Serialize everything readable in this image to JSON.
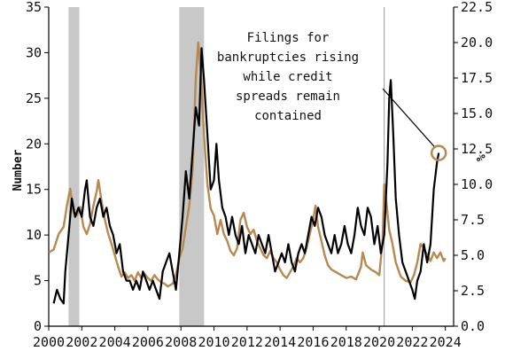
{
  "chart_data": {
    "type": "line",
    "title": "",
    "xlabel": "",
    "ylabel_left": "Number",
    "ylabel_right": "%",
    "x_ticks": [
      "2000",
      "2002",
      "2004",
      "2006",
      "2008",
      "2010",
      "2012",
      "2014",
      "2016",
      "2018",
      "2020",
      "2022",
      "2024"
    ],
    "xlim": [
      2000,
      2024.5
    ],
    "y_left": {
      "lim": [
        0,
        35
      ],
      "ticks": [
        "0",
        "5",
        "10",
        "15",
        "20",
        "25",
        "30",
        "35"
      ]
    },
    "y_right": {
      "lim": [
        0,
        22.5
      ],
      "ticks": [
        "0.0",
        "2.5",
        "5.0",
        "7.5",
        "10.0",
        "12.5",
        "15.0",
        "17.5",
        "20.0",
        "22.5"
      ]
    },
    "grid": false,
    "recession_shading": [
      [
        2001.2,
        2001.85
      ],
      [
        2007.9,
        2009.4
      ]
    ],
    "vertical_marker_x": 2020.3,
    "colors": {
      "bankruptcies": "#000000",
      "credit_spreads": "#b5894f",
      "recession": "#c8c8c8",
      "highlight": "#b5894f"
    },
    "annotation": {
      "lines": [
        "Filings for",
        "bankruptcies rising",
        "while credit",
        "spreads remain",
        "contained"
      ],
      "target": {
        "x": 2023.6,
        "y_left": 19
      }
    },
    "series": [
      {
        "axis": "left",
        "color_key": "bankruptcies",
        "points": [
          [
            2000.3,
            2.5
          ],
          [
            2000.5,
            4
          ],
          [
            2000.7,
            3
          ],
          [
            2000.9,
            2.5
          ],
          [
            2001.0,
            6
          ],
          [
            2001.2,
            10
          ],
          [
            2001.4,
            14
          ],
          [
            2001.6,
            12
          ],
          [
            2001.8,
            13
          ],
          [
            2002.0,
            12
          ],
          [
            2002.2,
            15
          ],
          [
            2002.3,
            16
          ],
          [
            2002.5,
            12
          ],
          [
            2002.7,
            11
          ],
          [
            2002.9,
            13
          ],
          [
            2003.1,
            14
          ],
          [
            2003.3,
            12
          ],
          [
            2003.5,
            13
          ],
          [
            2003.7,
            11
          ],
          [
            2003.9,
            10
          ],
          [
            2004.1,
            8
          ],
          [
            2004.3,
            9
          ],
          [
            2004.5,
            6
          ],
          [
            2004.7,
            5
          ],
          [
            2004.9,
            5
          ],
          [
            2005.1,
            4
          ],
          [
            2005.3,
            5
          ],
          [
            2005.5,
            4
          ],
          [
            2005.7,
            6
          ],
          [
            2005.9,
            5
          ],
          [
            2006.1,
            4
          ],
          [
            2006.3,
            5
          ],
          [
            2006.5,
            4
          ],
          [
            2006.7,
            3
          ],
          [
            2006.9,
            6
          ],
          [
            2007.1,
            7
          ],
          [
            2007.3,
            8
          ],
          [
            2007.5,
            6
          ],
          [
            2007.7,
            4
          ],
          [
            2007.9,
            8
          ],
          [
            2008.1,
            12
          ],
          [
            2008.3,
            17
          ],
          [
            2008.5,
            14
          ],
          [
            2008.7,
            19
          ],
          [
            2008.9,
            24
          ],
          [
            2009.1,
            22
          ],
          [
            2009.25,
            30.5
          ],
          [
            2009.4,
            27
          ],
          [
            2009.6,
            21
          ],
          [
            2009.8,
            15
          ],
          [
            2010.0,
            16
          ],
          [
            2010.15,
            20
          ],
          [
            2010.3,
            16
          ],
          [
            2010.5,
            13
          ],
          [
            2010.7,
            12
          ],
          [
            2010.9,
            10
          ],
          [
            2011.1,
            12
          ],
          [
            2011.3,
            10
          ],
          [
            2011.5,
            9
          ],
          [
            2011.7,
            11
          ],
          [
            2011.9,
            8
          ],
          [
            2012.1,
            10
          ],
          [
            2012.3,
            9
          ],
          [
            2012.5,
            8
          ],
          [
            2012.7,
            10
          ],
          [
            2012.9,
            9
          ],
          [
            2013.1,
            8
          ],
          [
            2013.3,
            10
          ],
          [
            2013.5,
            8
          ],
          [
            2013.7,
            6
          ],
          [
            2013.9,
            7
          ],
          [
            2014.1,
            8
          ],
          [
            2014.3,
            7
          ],
          [
            2014.5,
            9
          ],
          [
            2014.7,
            7
          ],
          [
            2014.9,
            6
          ],
          [
            2015.1,
            8
          ],
          [
            2015.3,
            9
          ],
          [
            2015.5,
            8
          ],
          [
            2015.7,
            10
          ],
          [
            2015.9,
            12
          ],
          [
            2016.1,
            11
          ],
          [
            2016.3,
            13
          ],
          [
            2016.5,
            12
          ],
          [
            2016.7,
            10
          ],
          [
            2016.9,
            9
          ],
          [
            2017.1,
            8
          ],
          [
            2017.3,
            10
          ],
          [
            2017.5,
            8
          ],
          [
            2017.7,
            9
          ],
          [
            2017.9,
            11
          ],
          [
            2018.1,
            9
          ],
          [
            2018.3,
            8
          ],
          [
            2018.5,
            10
          ],
          [
            2018.7,
            13
          ],
          [
            2018.9,
            11
          ],
          [
            2019.1,
            10
          ],
          [
            2019.3,
            13
          ],
          [
            2019.5,
            12
          ],
          [
            2019.7,
            9
          ],
          [
            2019.9,
            11
          ],
          [
            2020.1,
            8
          ],
          [
            2020.3,
            10
          ],
          [
            2020.5,
            18
          ],
          [
            2020.6,
            25
          ],
          [
            2020.7,
            27
          ],
          [
            2020.85,
            21
          ],
          [
            2021.0,
            14
          ],
          [
            2021.2,
            10
          ],
          [
            2021.4,
            7
          ],
          [
            2021.6,
            6
          ],
          [
            2021.8,
            5
          ],
          [
            2022.0,
            4
          ],
          [
            2022.15,
            3
          ],
          [
            2022.3,
            5
          ],
          [
            2022.5,
            6
          ],
          [
            2022.7,
            9
          ],
          [
            2022.9,
            7
          ],
          [
            2023.1,
            9
          ],
          [
            2023.3,
            15
          ],
          [
            2023.5,
            18
          ],
          [
            2023.6,
            19
          ]
        ]
      },
      {
        "axis": "right",
        "color_key": "credit_spreads",
        "points": [
          [
            2000.0,
            5.2
          ],
          [
            2000.3,
            5.4
          ],
          [
            2000.6,
            6.5
          ],
          [
            2000.9,
            7.0
          ],
          [
            2001.1,
            8.5
          ],
          [
            2001.3,
            9.7
          ],
          [
            2001.5,
            8.0
          ],
          [
            2001.7,
            7.8
          ],
          [
            2001.9,
            8.4
          ],
          [
            2002.1,
            7.0
          ],
          [
            2002.3,
            6.5
          ],
          [
            2002.5,
            7.2
          ],
          [
            2002.7,
            8.5
          ],
          [
            2002.9,
            9.5
          ],
          [
            2003.0,
            10.3
          ],
          [
            2003.2,
            8.8
          ],
          [
            2003.4,
            7.5
          ],
          [
            2003.6,
            6.5
          ],
          [
            2003.8,
            5.8
          ],
          [
            2004.0,
            5.0
          ],
          [
            2004.2,
            4.2
          ],
          [
            2004.4,
            3.5
          ],
          [
            2004.6,
            3.8
          ],
          [
            2004.8,
            3.4
          ],
          [
            2005.0,
            3.6
          ],
          [
            2005.2,
            3.2
          ],
          [
            2005.4,
            3.8
          ],
          [
            2005.6,
            3.4
          ],
          [
            2005.8,
            3.7
          ],
          [
            2006.0,
            3.4
          ],
          [
            2006.2,
            3.2
          ],
          [
            2006.4,
            3.6
          ],
          [
            2006.6,
            3.3
          ],
          [
            2006.8,
            3.1
          ],
          [
            2007.0,
            3.0
          ],
          [
            2007.2,
            2.8
          ],
          [
            2007.5,
            3.0
          ],
          [
            2007.7,
            3.6
          ],
          [
            2007.9,
            4.8
          ],
          [
            2008.1,
            5.5
          ],
          [
            2008.3,
            7.0
          ],
          [
            2008.5,
            8.5
          ],
          [
            2008.7,
            11.0
          ],
          [
            2008.9,
            17.5
          ],
          [
            2009.05,
            20.0
          ],
          [
            2009.2,
            18.0
          ],
          [
            2009.4,
            13.5
          ],
          [
            2009.6,
            10.0
          ],
          [
            2009.8,
            8.3
          ],
          [
            2010.0,
            7.8
          ],
          [
            2010.2,
            6.5
          ],
          [
            2010.4,
            7.5
          ],
          [
            2010.6,
            6.5
          ],
          [
            2010.8,
            6.0
          ],
          [
            2011.0,
            5.3
          ],
          [
            2011.2,
            5.0
          ],
          [
            2011.4,
            5.5
          ],
          [
            2011.6,
            7.5
          ],
          [
            2011.8,
            8.0
          ],
          [
            2012.0,
            7.0
          ],
          [
            2012.2,
            6.5
          ],
          [
            2012.4,
            6.8
          ],
          [
            2012.6,
            6.0
          ],
          [
            2012.8,
            5.5
          ],
          [
            2013.0,
            5.0
          ],
          [
            2013.2,
            4.8
          ],
          [
            2013.4,
            5.3
          ],
          [
            2013.6,
            4.8
          ],
          [
            2013.8,
            4.5
          ],
          [
            2014.0,
            4.0
          ],
          [
            2014.2,
            3.6
          ],
          [
            2014.4,
            3.4
          ],
          [
            2014.6,
            3.8
          ],
          [
            2014.8,
            4.2
          ],
          [
            2015.0,
            4.8
          ],
          [
            2015.2,
            4.5
          ],
          [
            2015.4,
            4.8
          ],
          [
            2015.6,
            5.5
          ],
          [
            2015.8,
            6.5
          ],
          [
            2016.0,
            7.5
          ],
          [
            2016.15,
            8.5
          ],
          [
            2016.3,
            7.0
          ],
          [
            2016.5,
            6.0
          ],
          [
            2016.7,
            5.0
          ],
          [
            2016.9,
            4.3
          ],
          [
            2017.1,
            4.0
          ],
          [
            2017.4,
            3.8
          ],
          [
            2017.7,
            3.6
          ],
          [
            2018.0,
            3.4
          ],
          [
            2018.3,
            3.5
          ],
          [
            2018.6,
            3.3
          ],
          [
            2018.9,
            4.2
          ],
          [
            2019.0,
            5.2
          ],
          [
            2019.2,
            4.3
          ],
          [
            2019.5,
            4.0
          ],
          [
            2019.8,
            3.8
          ],
          [
            2020.0,
            3.6
          ],
          [
            2020.2,
            6.0
          ],
          [
            2020.3,
            10.0
          ],
          [
            2020.45,
            8.5
          ],
          [
            2020.6,
            6.8
          ],
          [
            2020.8,
            5.8
          ],
          [
            2021.0,
            4.5
          ],
          [
            2021.3,
            3.5
          ],
          [
            2021.6,
            3.2
          ],
          [
            2021.9,
            3.1
          ],
          [
            2022.1,
            3.6
          ],
          [
            2022.3,
            4.5
          ],
          [
            2022.5,
            5.8
          ],
          [
            2022.7,
            5.5
          ],
          [
            2022.9,
            5.0
          ],
          [
            2023.1,
            4.6
          ],
          [
            2023.3,
            5.2
          ],
          [
            2023.5,
            4.8
          ],
          [
            2023.7,
            5.2
          ],
          [
            2023.9,
            4.6
          ],
          [
            2024.0,
            4.8
          ]
        ]
      }
    ]
  }
}
